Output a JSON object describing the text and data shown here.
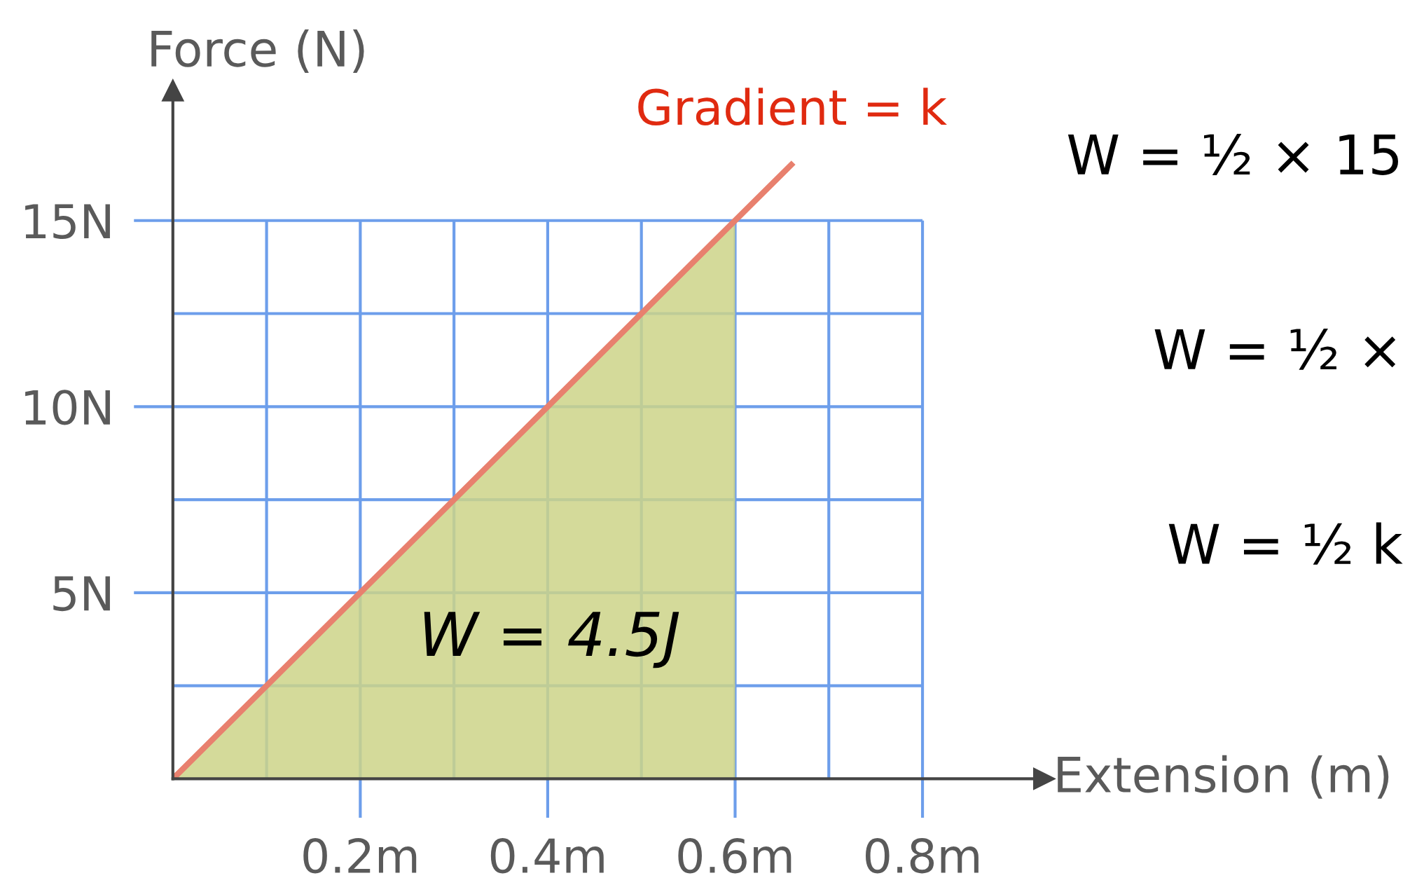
{
  "chart_data": {
    "type": "line",
    "xlabel": "Extension (m)",
    "ylabel": "Force (N)",
    "series": [
      {
        "name": "W = 4.5J",
        "type": "area",
        "color": "#cdd488",
        "x": [
          0,
          0.6
        ],
        "values": [
          0,
          15
        ]
      },
      {
        "name": "Gradient = k",
        "color": "#e8806e",
        "x": [
          0,
          0.66
        ],
        "values": [
          0,
          16.5
        ]
      }
    ],
    "xlim": [
      0,
      0.93
    ],
    "ylim": [
      0,
      18.5
    ],
    "xticks": [
      {
        "value": 0.2,
        "label": "0.2m"
      },
      {
        "value": 0.4,
        "label": "0.4m"
      },
      {
        "value": 0.6,
        "label": "0.6m"
      },
      {
        "value": 0.8,
        "label": "0.8m"
      }
    ],
    "yticks": [
      {
        "value": 5,
        "label": "5N"
      },
      {
        "value": 10,
        "label": "10N"
      },
      {
        "value": 15,
        "label": "15N"
      }
    ],
    "grid": true,
    "legend": false,
    "annotations": [
      "W = ½ × 15",
      "W = ½ ×",
      "W = ½ k"
    ]
  }
}
